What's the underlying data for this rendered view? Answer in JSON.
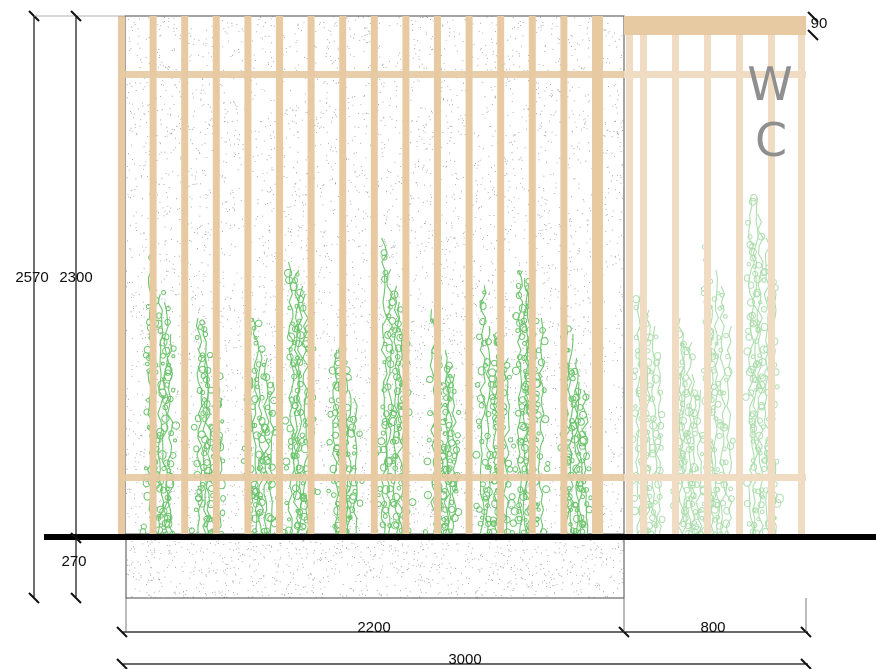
{
  "dimensions": {
    "total_height": "2570",
    "wall_height": "2300",
    "foundation_depth": "270",
    "cap_thickness": "90",
    "wall_width": "2200",
    "side_width": "800",
    "total_width": "3000"
  },
  "labels": {
    "room_letter_1": "W",
    "room_letter_2": "C"
  },
  "colors": {
    "timber": "#e7c9a2",
    "timber_light": "#f0dcc2",
    "plant": "#6cc46c",
    "plant_faded": "#b9ddb3",
    "ground_line": "#000000",
    "concrete_dots": "#9a9a9a"
  }
}
